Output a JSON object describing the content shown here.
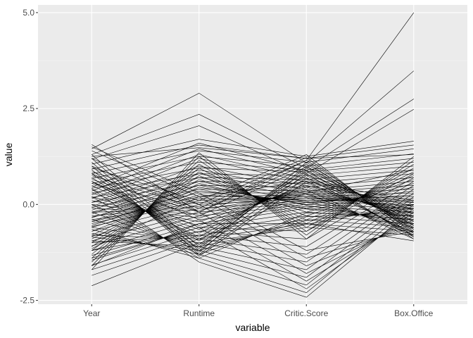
{
  "chart_data": {
    "type": "line",
    "title": "",
    "xlabel": "variable",
    "ylabel": "value",
    "categories": [
      "Year",
      "Runtime",
      "Critic.Score",
      "Box.Office"
    ],
    "ylim": [
      -2.6,
      5.2
    ],
    "yticks": [
      -2.5,
      0.0,
      2.5,
      5.0
    ],
    "ytick_labels": [
      "-2.5",
      "0.0",
      "2.5",
      "5.0"
    ],
    "grid": true,
    "legend": "none",
    "colors": {
      "panel": "#ebebeb",
      "grid_major": "#ffffff",
      "grid_minor": "#f5f5f5",
      "line": "#000000"
    },
    "series": [
      {
        "values": [
          1.56,
          -0.2,
          1.15,
          5.0
        ]
      },
      {
        "values": [
          1.45,
          2.9,
          1.08,
          3.48
        ]
      },
      {
        "values": [
          1.3,
          2.35,
          0.95,
          2.75
        ]
      },
      {
        "values": [
          1.18,
          2.05,
          0.8,
          2.48
        ]
      },
      {
        "values": [
          1.05,
          1.7,
          1.25,
          1.65
        ]
      },
      {
        "values": [
          0.92,
          1.55,
          1.2,
          1.55
        ]
      },
      {
        "values": [
          0.8,
          1.4,
          1.1,
          1.45
        ]
      },
      {
        "values": [
          0.68,
          1.25,
          1.0,
          1.32
        ]
      },
      {
        "values": [
          0.55,
          1.1,
          0.9,
          1.2
        ]
      },
      {
        "values": [
          0.42,
          0.95,
          0.85,
          1.1
        ]
      },
      {
        "values": [
          0.3,
          0.8,
          0.75,
          1.0
        ]
      },
      {
        "values": [
          0.18,
          0.7,
          0.65,
          0.9
        ]
      },
      {
        "values": [
          0.05,
          0.6,
          0.55,
          0.8
        ]
      },
      {
        "values": [
          -0.08,
          0.5,
          0.45,
          0.7
        ]
      },
      {
        "values": [
          -0.2,
          0.4,
          0.35,
          0.6
        ]
      },
      {
        "values": [
          -0.33,
          0.3,
          0.3,
          0.5
        ]
      },
      {
        "values": [
          -0.45,
          0.2,
          0.25,
          0.4
        ]
      },
      {
        "values": [
          -0.58,
          0.1,
          0.2,
          0.3
        ]
      },
      {
        "values": [
          -0.7,
          0.0,
          0.15,
          0.2
        ]
      },
      {
        "values": [
          -0.83,
          -0.1,
          0.1,
          0.1
        ]
      },
      {
        "values": [
          -0.95,
          -0.2,
          0.05,
          0.0
        ]
      },
      {
        "values": [
          -1.08,
          -0.3,
          0.0,
          -0.1
        ]
      },
      {
        "values": [
          -1.2,
          -0.4,
          -0.05,
          -0.2
        ]
      },
      {
        "values": [
          -1.33,
          -0.5,
          -0.1,
          -0.3
        ]
      },
      {
        "values": [
          -1.45,
          -0.6,
          -0.2,
          -0.4
        ]
      },
      {
        "values": [
          -1.58,
          -0.7,
          -0.3,
          -0.5
        ]
      },
      {
        "values": [
          -1.7,
          -0.8,
          -0.4,
          -0.6
        ]
      },
      {
        "values": [
          -1.85,
          -0.9,
          -0.5,
          -0.7
        ]
      },
      {
        "values": [
          -2.12,
          -1.0,
          -0.6,
          -0.8
        ]
      },
      {
        "values": [
          1.3,
          -1.1,
          0.9,
          -0.9
        ]
      },
      {
        "values": [
          1.2,
          -1.2,
          0.8,
          -0.85
        ]
      },
      {
        "values": [
          1.1,
          -1.3,
          0.7,
          -0.8
        ]
      },
      {
        "values": [
          1.0,
          -1.35,
          0.6,
          -0.75
        ]
      },
      {
        "values": [
          0.9,
          -1.25,
          1.1,
          -0.7
        ]
      },
      {
        "values": [
          0.8,
          -1.15,
          1.0,
          -0.65
        ]
      },
      {
        "values": [
          0.7,
          -1.05,
          0.95,
          -0.6
        ]
      },
      {
        "values": [
          0.6,
          -0.95,
          0.85,
          -0.55
        ]
      },
      {
        "values": [
          0.5,
          -0.85,
          0.75,
          -0.5
        ]
      },
      {
        "values": [
          0.4,
          -0.75,
          0.65,
          -0.45
        ]
      },
      {
        "values": [
          0.3,
          -0.65,
          0.55,
          -0.4
        ]
      },
      {
        "values": [
          0.2,
          -0.55,
          0.5,
          -0.35
        ]
      },
      {
        "values": [
          0.1,
          -0.45,
          0.45,
          -0.3
        ]
      },
      {
        "values": [
          0.0,
          -0.35,
          0.4,
          -0.25
        ]
      },
      {
        "values": [
          -0.1,
          -0.25,
          0.35,
          -0.2
        ]
      },
      {
        "values": [
          -0.2,
          -0.15,
          0.3,
          -0.15
        ]
      },
      {
        "values": [
          -0.3,
          -0.05,
          0.25,
          -0.1
        ]
      },
      {
        "values": [
          -0.4,
          0.05,
          0.2,
          -0.05
        ]
      },
      {
        "values": [
          -0.5,
          0.15,
          0.15,
          0.05
        ]
      },
      {
        "values": [
          -0.6,
          0.25,
          0.1,
          0.15
        ]
      },
      {
        "values": [
          -0.7,
          0.35,
          0.05,
          0.25
        ]
      },
      {
        "values": [
          -0.8,
          0.45,
          0.0,
          0.35
        ]
      },
      {
        "values": [
          -0.9,
          0.55,
          -0.1,
          0.45
        ]
      },
      {
        "values": [
          -1.0,
          0.65,
          -0.2,
          0.55
        ]
      },
      {
        "values": [
          -1.1,
          0.75,
          -0.3,
          0.65
        ]
      },
      {
        "values": [
          -1.2,
          0.85,
          -0.4,
          0.75
        ]
      },
      {
        "values": [
          -1.3,
          0.95,
          -0.5,
          0.85
        ]
      },
      {
        "values": [
          -1.4,
          1.05,
          -0.6,
          0.95
        ]
      },
      {
        "values": [
          -1.5,
          1.15,
          -0.7,
          1.05
        ]
      },
      {
        "values": [
          -1.6,
          1.25,
          -0.8,
          1.15
        ]
      },
      {
        "values": [
          -1.7,
          1.35,
          -0.9,
          1.25
        ]
      },
      {
        "values": [
          1.5,
          0.3,
          -1.2,
          -0.7
        ]
      },
      {
        "values": [
          1.4,
          0.2,
          -1.4,
          -0.6
        ]
      },
      {
        "values": [
          1.2,
          0.0,
          -1.6,
          -0.5
        ]
      },
      {
        "values": [
          1.0,
          -0.2,
          -1.8,
          -0.4
        ]
      },
      {
        "values": [
          0.8,
          -0.4,
          -2.0,
          -0.3
        ]
      },
      {
        "values": [
          0.6,
          -0.6,
          -2.2,
          -0.2
        ]
      },
      {
        "values": [
          0.4,
          -1.5,
          -2.42,
          -0.1
        ]
      },
      {
        "values": [
          0.2,
          -1.4,
          -2.3,
          0.0
        ]
      },
      {
        "values": [
          0.0,
          -1.3,
          -2.1,
          0.1
        ]
      },
      {
        "values": [
          -0.2,
          -1.2,
          -1.9,
          0.2
        ]
      },
      {
        "values": [
          -0.4,
          -1.1,
          -1.7,
          0.3
        ]
      },
      {
        "values": [
          -0.6,
          -1.0,
          -1.5,
          0.4
        ]
      },
      {
        "values": [
          -0.8,
          -0.9,
          -1.3,
          0.5
        ]
      },
      {
        "values": [
          -1.0,
          -0.8,
          -1.1,
          0.6
        ]
      },
      {
        "values": [
          -1.2,
          -0.7,
          -0.9,
          0.7
        ]
      },
      {
        "values": [
          -1.4,
          -0.6,
          -0.7,
          0.8
        ]
      },
      {
        "values": [
          -1.6,
          -0.5,
          -0.5,
          -0.95
        ]
      },
      {
        "values": [
          0.95,
          0.1,
          1.3,
          -0.85
        ]
      },
      {
        "values": [
          0.85,
          0.0,
          1.22,
          -0.75
        ]
      },
      {
        "values": [
          0.75,
          -0.1,
          1.15,
          -0.65
        ]
      },
      {
        "values": [
          0.65,
          -0.2,
          1.05,
          -0.55
        ]
      },
      {
        "values": [
          0.55,
          -0.3,
          0.98,
          -0.45
        ]
      },
      {
        "values": [
          0.45,
          1.6,
          0.88,
          -0.35
        ]
      },
      {
        "values": [
          0.35,
          1.45,
          0.78,
          -0.25
        ]
      },
      {
        "values": [
          0.25,
          1.3,
          0.68,
          -0.15
        ]
      },
      {
        "values": [
          0.15,
          1.2,
          0.58,
          -0.05
        ]
      },
      {
        "values": [
          0.05,
          1.0,
          0.48,
          0.05
        ]
      },
      {
        "values": [
          -0.05,
          0.9,
          0.38,
          -0.9
        ]
      },
      {
        "values": [
          -0.15,
          0.8,
          0.28,
          -0.8
        ]
      },
      {
        "values": [
          -0.25,
          0.7,
          0.18,
          -0.7
        ]
      },
      {
        "values": [
          -0.35,
          0.6,
          0.08,
          -0.6
        ]
      },
      {
        "values": [
          -0.45,
          0.5,
          -0.02,
          -0.5
        ]
      },
      {
        "values": [
          -0.55,
          0.4,
          -0.12,
          -0.4
        ]
      },
      {
        "values": [
          -0.65,
          -1.4,
          -0.22,
          -0.3
        ]
      },
      {
        "values": [
          -0.75,
          -1.3,
          -0.32,
          -0.2
        ]
      },
      {
        "values": [
          -0.85,
          -1.2,
          -0.42,
          -0.1
        ]
      },
      {
        "values": [
          -0.95,
          -1.1,
          -0.52,
          0.0
        ]
      },
      {
        "values": [
          1.25,
          1.48,
          1.2,
          1.3
        ]
      },
      {
        "values": [
          0.6,
          -0.9,
          0.3,
          0.9
        ]
      },
      {
        "values": [
          -1.15,
          0.2,
          0.6,
          0.1
        ]
      }
    ]
  }
}
